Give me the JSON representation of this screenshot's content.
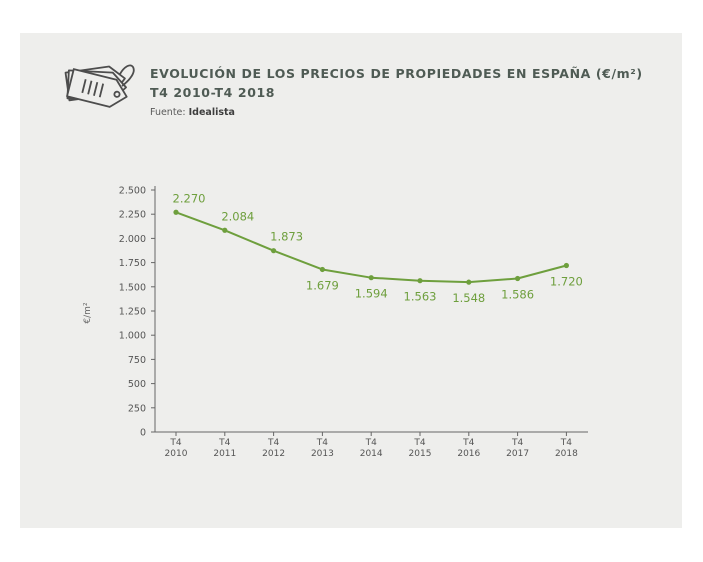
{
  "header": {
    "title_line1": "EVOLUCIÓN DE LOS PRECIOS DE PROPIEDADES EN ESPAÑA (€/m²)",
    "title_line2": "T4 2010-T4 2018",
    "source_label": "Fuente:",
    "source_name": "Idealista",
    "icon": "price-tags-icon"
  },
  "colors": {
    "line": "#6e9f3d",
    "label": "#6e9f3d",
    "title": "#4f5b54",
    "axis": "#666666",
    "background": "#eeeeec"
  },
  "chart_data": {
    "type": "line",
    "title": "EVOLUCIÓN DE LOS PRECIOS DE PROPIEDADES EN ESPAÑA (€/m²) T4 2010-T4 2018",
    "ylabel": "€/m²",
    "xlabel": "",
    "ylim": [
      0,
      2500
    ],
    "yticks": [
      0,
      250,
      500,
      750,
      1000,
      1250,
      1500,
      1750,
      2000,
      2250,
      2500
    ],
    "ytick_labels": [
      "0",
      "250",
      "500",
      "750",
      "1.000",
      "1.250",
      "1.500",
      "1.750",
      "2.000",
      "2.250",
      "2.500"
    ],
    "categories": [
      "T4 2010",
      "T4 2011",
      "T4 2012",
      "T4 2013",
      "T4 2014",
      "T4 2015",
      "T4 2016",
      "T4 2017",
      "T4 2018"
    ],
    "category_lines": [
      [
        "T4",
        "2010"
      ],
      [
        "T4",
        "2011"
      ],
      [
        "T4",
        "2012"
      ],
      [
        "T4",
        "2013"
      ],
      [
        "T4",
        "2014"
      ],
      [
        "T4",
        "2015"
      ],
      [
        "T4",
        "2016"
      ],
      [
        "T4",
        "2017"
      ],
      [
        "T4",
        "2018"
      ]
    ],
    "values": [
      2270,
      2084,
      1873,
      1679,
      1594,
      1563,
      1548,
      1586,
      1720
    ],
    "value_labels": [
      "2.270",
      "2.084",
      "1.873",
      "1.679",
      "1.594",
      "1.563",
      "1.548",
      "1.586",
      "1.720"
    ],
    "value_label_positions": [
      "above",
      "above",
      "above",
      "below",
      "below",
      "below",
      "below",
      "below",
      "below"
    ],
    "grid": false,
    "legend": "none"
  }
}
